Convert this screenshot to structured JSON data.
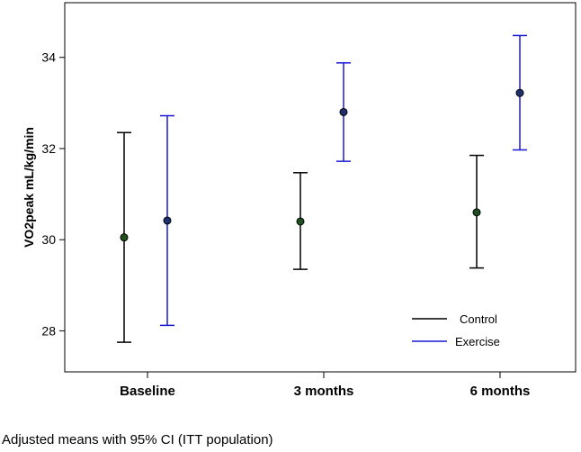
{
  "chart_data": {
    "type": "errorbar",
    "title": "",
    "xlabel": "",
    "ylabel": "VO2peak mL/kg/min",
    "ylim": [
      27.1,
      35.2
    ],
    "yticks": [
      28,
      30,
      32,
      34
    ],
    "categories": [
      "Baseline",
      "3 months",
      "6 months"
    ],
    "series": [
      {
        "name": "Control",
        "color": "#000000",
        "marker_color": "#1f4f1f",
        "values": [
          30.05,
          30.4,
          30.6
        ],
        "lower": [
          27.75,
          29.35,
          29.38
        ],
        "upper": [
          32.35,
          31.47,
          31.85
        ]
      },
      {
        "name": "Exercise",
        "color": "#1a1ad6",
        "marker_color": "#1f2f6f",
        "values": [
          30.42,
          32.8,
          33.22
        ],
        "lower": [
          28.12,
          31.72,
          31.97
        ],
        "upper": [
          32.72,
          33.88,
          34.48
        ]
      }
    ],
    "legend": {
      "position": "bottom-right",
      "entries": [
        "Control",
        "Exercise"
      ]
    },
    "caption": "Adjusted means with 95% CI (ITT population)"
  }
}
